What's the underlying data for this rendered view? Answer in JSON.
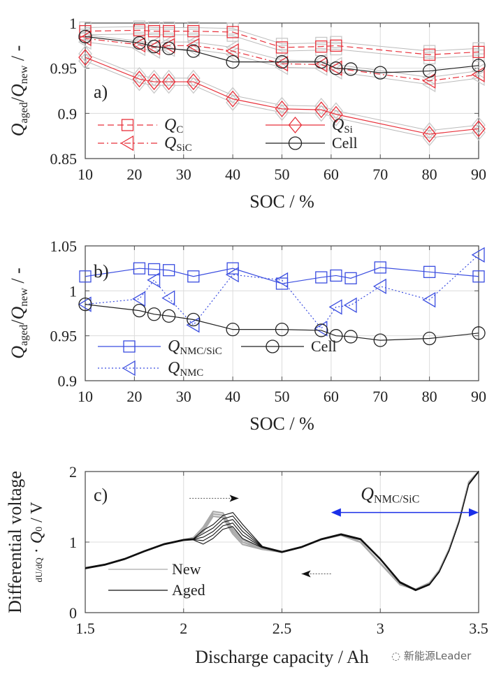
{
  "chart_data": [
    {
      "panel": "a)",
      "type": "line",
      "xlabel": "SOC / %",
      "ylabel": "Q_aged/Q_new / -",
      "xlim": [
        10,
        90
      ],
      "ylim": [
        0.85,
        1.0
      ],
      "xticks": [
        "10",
        "20",
        "30",
        "40",
        "50",
        "60",
        "70",
        "80",
        "90"
      ],
      "yticks": [
        "0.85",
        "0.9",
        "0.95",
        "1"
      ],
      "grid": true,
      "legend_position": "bottom-left",
      "series": [
        {
          "name": "Q_C",
          "label_main": "Q",
          "label_sub": "C",
          "color": "#e8303a",
          "dash": "dashed",
          "marker": "square",
          "x": [
            10,
            21,
            24,
            27,
            32,
            40,
            50,
            58,
            61,
            80,
            90
          ],
          "y": [
            0.991,
            0.992,
            0.991,
            0.991,
            0.991,
            0.99,
            0.973,
            0.974,
            0.975,
            0.965,
            0.968
          ]
        },
        {
          "name": "Q_SiC",
          "label_main": "Q",
          "label_sub": "SiC",
          "color": "#e8303a",
          "dash": "dashdot",
          "marker": "triangle-left",
          "x": [
            10,
            21,
            24,
            27,
            32,
            40,
            50,
            58,
            61,
            80,
            90
          ],
          "y": [
            0.983,
            0.976,
            0.973,
            0.975,
            0.975,
            0.969,
            0.955,
            0.954,
            0.95,
            0.936,
            0.943
          ]
        },
        {
          "name": "Q_Si",
          "label_main": "Q",
          "label_sub": "Si",
          "color": "#e8303a",
          "dash": "solid",
          "marker": "diamond",
          "x": [
            10,
            21,
            24,
            27,
            32,
            40,
            50,
            58,
            61,
            80,
            90
          ],
          "y": [
            0.962,
            0.938,
            0.935,
            0.935,
            0.935,
            0.916,
            0.905,
            0.904,
            0.899,
            0.877,
            0.883
          ]
        },
        {
          "name": "Cell",
          "label_main": "Cell",
          "label_sub": "",
          "color": "#222222",
          "dash": "solid",
          "marker": "circle",
          "x": [
            10,
            21,
            24,
            27,
            32,
            40,
            50,
            58,
            61,
            64,
            70,
            80,
            90
          ],
          "y": [
            0.985,
            0.978,
            0.974,
            0.972,
            0.969,
            0.957,
            0.957,
            0.957,
            0.95,
            0.949,
            0.945,
            0.947,
            0.953
          ]
        }
      ]
    },
    {
      "panel": "b)",
      "type": "line",
      "xlabel": "SOC / %",
      "ylabel": "Q_aged/Q_new / -",
      "xlim": [
        10,
        90
      ],
      "ylim": [
        0.9,
        1.05
      ],
      "xticks": [
        "10",
        "20",
        "30",
        "40",
        "50",
        "60",
        "70",
        "80",
        "90"
      ],
      "yticks": [
        "0.9",
        "0.95",
        "1",
        "1.05"
      ],
      "grid": true,
      "legend_position": "bottom-left",
      "series": [
        {
          "name": "Q_NMC/SiC",
          "label_main": "Q",
          "label_sub": "NMC/SiC",
          "color": "#3a4de0",
          "dash": "solid",
          "marker": "square",
          "x": [
            10,
            21,
            24,
            27,
            32,
            40,
            50,
            58,
            61,
            64,
            70,
            80,
            90
          ],
          "y": [
            1.016,
            1.025,
            1.024,
            1.023,
            1.016,
            1.025,
            1.008,
            1.015,
            1.017,
            1.014,
            1.026,
            1.021,
            1.016
          ]
        },
        {
          "name": "Q_NMC",
          "label_main": "Q",
          "label_sub": "NMC",
          "color": "#3a4de0",
          "dash": "dotted",
          "marker": "triangle-left",
          "x": [
            10,
            21,
            24,
            27,
            32,
            40,
            50,
            58,
            61,
            64,
            70,
            80,
            90
          ],
          "y": [
            0.985,
            0.991,
            1.012,
            0.992,
            0.962,
            1.018,
            1.012,
            0.958,
            0.982,
            0.984,
            1.005,
            0.99,
            1.04
          ]
        },
        {
          "name": "Cell",
          "label_main": "Cell",
          "label_sub": "",
          "color": "#222222",
          "dash": "solid",
          "marker": "circle",
          "x": [
            10,
            21,
            24,
            27,
            32,
            40,
            50,
            58,
            61,
            64,
            70,
            80,
            90
          ],
          "y": [
            0.985,
            0.978,
            0.974,
            0.972,
            0.968,
            0.957,
            0.957,
            0.956,
            0.95,
            0.949,
            0.945,
            0.947,
            0.953
          ]
        }
      ]
    },
    {
      "panel": "c)",
      "type": "line",
      "xlabel": "Discharge capacity / Ah",
      "ylabel_line1": "Differential voltage",
      "ylabel_line2": "dU/dQ · Q0 / V",
      "xlim": [
        1.5,
        3.5
      ],
      "ylim": [
        0,
        2
      ],
      "xticks": [
        "1.5",
        "2",
        "2.5",
        "3",
        "3.5"
      ],
      "yticks": [
        "0",
        "1",
        "2"
      ],
      "grid": true,
      "legend_position": "bottom-left",
      "annotation": {
        "main": "Q",
        "sub": "NMC/SiC",
        "arrow_from": 2.75,
        "arrow_to": 3.5,
        "arrow_y": 1.42,
        "color": "#1a2fe8"
      },
      "shift_arrows": [
        {
          "from": 2.03,
          "to": 2.28,
          "y": 1.62,
          "direction": "right"
        },
        {
          "from": 2.6,
          "to": 2.75,
          "y": 0.55,
          "direction": "left"
        }
      ],
      "series": [
        {
          "name": "New",
          "color": "#aaaaaa",
          "x": [
            1.5,
            1.6,
            1.7,
            1.8,
            1.9,
            2.0,
            2.05,
            2.1,
            2.15,
            2.2,
            2.25,
            2.3,
            2.4,
            2.5,
            2.6,
            2.7,
            2.8,
            2.9,
            3.0,
            3.1,
            3.18,
            3.25,
            3.3,
            3.35,
            3.4,
            3.45,
            3.5
          ],
          "y": [
            0.63,
            0.68,
            0.76,
            0.87,
            0.97,
            1.03,
            1.06,
            1.18,
            1.4,
            1.38,
            1.15,
            1.0,
            0.9,
            0.86,
            0.93,
            1.04,
            1.1,
            1.0,
            0.7,
            0.4,
            0.33,
            0.42,
            0.6,
            0.9,
            1.3,
            1.85,
            2.0
          ]
        },
        {
          "name": "Aged",
          "color": "#111111",
          "x": [
            1.5,
            1.6,
            1.7,
            1.8,
            1.9,
            2.0,
            2.05,
            2.1,
            2.15,
            2.2,
            2.25,
            2.3,
            2.4,
            2.5,
            2.6,
            2.7,
            2.8,
            2.9,
            3.0,
            3.1,
            3.18,
            3.25,
            3.3,
            3.35,
            3.4,
            3.45,
            3.5
          ],
          "y": [
            0.63,
            0.68,
            0.76,
            0.87,
            0.97,
            1.03,
            1.04,
            1.07,
            1.15,
            1.28,
            1.32,
            1.15,
            0.93,
            0.86,
            0.93,
            1.04,
            1.11,
            1.04,
            0.76,
            0.43,
            0.32,
            0.4,
            0.58,
            0.88,
            1.28,
            1.82,
            2.0
          ]
        }
      ]
    }
  ],
  "watermark": "新能源Leader"
}
